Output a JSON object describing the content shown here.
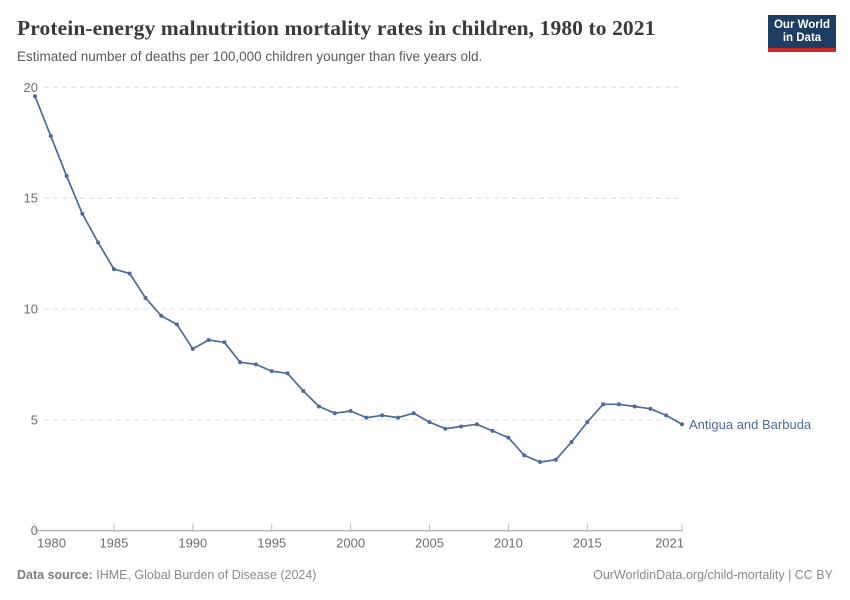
{
  "header": {
    "title": "Protein-energy malnutrition mortality rates in children, 1980 to 2021",
    "subtitle": "Estimated number of deaths per 100,000 children younger than five years old.",
    "logo": {
      "line1": "Our World",
      "line2": "in Data"
    }
  },
  "chart_data": {
    "type": "line",
    "title": "Protein-energy malnutrition mortality rates in children, 1980 to 2021",
    "x": [
      1980,
      1981,
      1982,
      1983,
      1984,
      1985,
      1986,
      1987,
      1988,
      1989,
      1990,
      1991,
      1992,
      1993,
      1994,
      1995,
      1996,
      1997,
      1998,
      1999,
      2000,
      2001,
      2002,
      2003,
      2004,
      2005,
      2006,
      2007,
      2008,
      2009,
      2010,
      2011,
      2012,
      2013,
      2014,
      2015,
      2016,
      2017,
      2018,
      2019,
      2020,
      2021
    ],
    "series": [
      {
        "name": "Antigua and Barbuda",
        "color": "#4C6A9C",
        "values": [
          19.6,
          17.8,
          16.0,
          14.3,
          13.0,
          11.8,
          11.6,
          10.5,
          9.7,
          9.3,
          8.2,
          8.6,
          8.5,
          7.6,
          7.5,
          7.2,
          7.1,
          6.3,
          5.6,
          5.3,
          5.4,
          5.1,
          5.2,
          5.1,
          5.3,
          4.9,
          4.6,
          4.7,
          4.8,
          4.5,
          4.2,
          3.4,
          3.1,
          3.2,
          4.0,
          4.9,
          5.7,
          5.7,
          5.6,
          5.5,
          5.2,
          4.8
        ]
      }
    ],
    "xlabel": "",
    "ylabel": "",
    "ylim": [
      0,
      20
    ],
    "yticks": [
      0,
      5,
      10,
      15,
      20
    ],
    "xticks": [
      1980,
      1985,
      1990,
      1995,
      2000,
      2005,
      2010,
      2015,
      2021
    ],
    "grid": "horizontal-dashed",
    "legend_position": "end-of-line-label",
    "end_label": "Antigua and Barbuda"
  },
  "footer": {
    "source_label": "Data source:",
    "source_text": "IHME, Global Burden of Disease (2024)",
    "credit": "OurWorldinData.org/child-mortality | CC BY"
  },
  "colors": {
    "line": "#4C6A9C",
    "logo_navy": "#1d3d63",
    "logo_red": "#cf2722",
    "grid": "#dcdcdc",
    "axis": "#9e9e9e",
    "tick": "#bdbdbd",
    "axis_label": "#6e6e6e",
    "title_text": "#3a3a3a"
  }
}
